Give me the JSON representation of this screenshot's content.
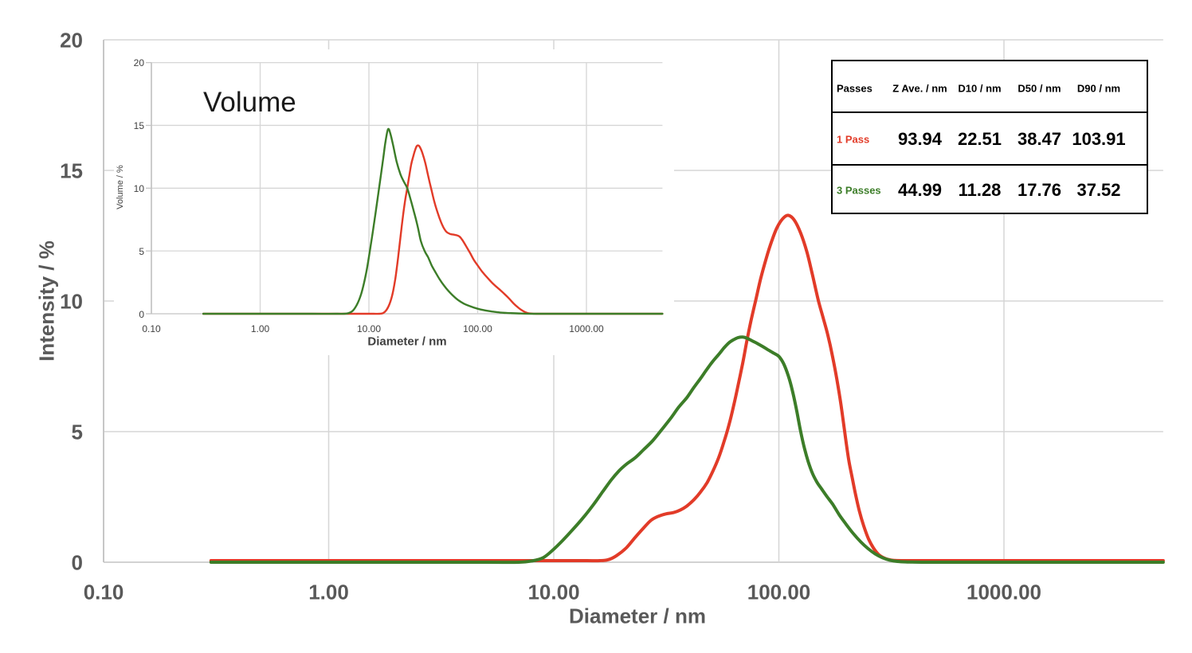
{
  "chart_data": [
    {
      "type": "line",
      "name": "intensity-size-distribution",
      "title": "",
      "xlabel": "Diameter / nm",
      "ylabel": "Intensity / %",
      "xscale": "log",
      "xlim": [
        0.1,
        5100
      ],
      "ylim": [
        0,
        20
      ],
      "yticks": [
        20,
        15,
        10,
        5,
        0
      ],
      "xtick_labels": [
        "0.10",
        "1.00",
        "10.00",
        "100.00",
        "1000.00"
      ],
      "xtick_values": [
        0.1,
        1,
        10,
        100,
        1000
      ],
      "grid": true,
      "legend": "none",
      "series": [
        {
          "name": "1 Pass",
          "color": "#e23b28",
          "points": [
            [
              0.3,
              0.06
            ],
            [
              0.6,
              0.06
            ],
            [
              1.2,
              0.06
            ],
            [
              2.5,
              0.06
            ],
            [
              5,
              0.06
            ],
            [
              8,
              0.06
            ],
            [
              11,
              0.06
            ],
            [
              14,
              0.06
            ],
            [
              16,
              0.06
            ],
            [
              17.5,
              0.1
            ],
            [
              19,
              0.25
            ],
            [
              21,
              0.55
            ],
            [
              23,
              0.95
            ],
            [
              25,
              1.3
            ],
            [
              27,
              1.6
            ],
            [
              29,
              1.75
            ],
            [
              31.5,
              1.85
            ],
            [
              34,
              1.9
            ],
            [
              36.5,
              2.0
            ],
            [
              39,
              2.15
            ],
            [
              42,
              2.4
            ],
            [
              45,
              2.7
            ],
            [
              48,
              3.05
            ],
            [
              51,
              3.5
            ],
            [
              54,
              4.0
            ],
            [
              57,
              4.6
            ],
            [
              60,
              5.25
            ],
            [
              63,
              6.0
            ],
            [
              66,
              6.8
            ],
            [
              69,
              7.6
            ],
            [
              72,
              8.45
            ],
            [
              75,
              9.2
            ],
            [
              79,
              10.05
            ],
            [
              83,
              10.85
            ],
            [
              88,
              11.65
            ],
            [
              93,
              12.3
            ],
            [
              98,
              12.8
            ],
            [
              104,
              13.15
            ],
            [
              110,
              13.28
            ],
            [
              117,
              13.1
            ],
            [
              125,
              12.6
            ],
            [
              133,
              11.9
            ],
            [
              141,
              11.0
            ],
            [
              150,
              10.0
            ],
            [
              158,
              9.3
            ],
            [
              165,
              8.7
            ],
            [
              173,
              7.9
            ],
            [
              181,
              7.0
            ],
            [
              189,
              6.0
            ],
            [
              196,
              5.0
            ],
            [
              204,
              3.95
            ],
            [
              211,
              3.3
            ],
            [
              219,
              2.6
            ],
            [
              228,
              1.95
            ],
            [
              238,
              1.4
            ],
            [
              250,
              0.9
            ],
            [
              263,
              0.55
            ],
            [
              277,
              0.3
            ],
            [
              292,
              0.17
            ],
            [
              308,
              0.1
            ],
            [
              325,
              0.07
            ],
            [
              360,
              0.06
            ],
            [
              500,
              0.06
            ],
            [
              800,
              0.06
            ],
            [
              1500,
              0.06
            ],
            [
              3000,
              0.06
            ],
            [
              5100,
              0.06
            ]
          ]
        },
        {
          "name": "3 Passes",
          "color": "#3c7d28",
          "points": [
            [
              0.3,
              0
            ],
            [
              0.6,
              0
            ],
            [
              1.2,
              0
            ],
            [
              2.5,
              0
            ],
            [
              5,
              0
            ],
            [
              7,
              0
            ],
            [
              8,
              0.05
            ],
            [
              9,
              0.18
            ],
            [
              10,
              0.5
            ],
            [
              11,
              0.85
            ],
            [
              12,
              1.2
            ],
            [
              13.5,
              1.7
            ],
            [
              15,
              2.2
            ],
            [
              16.5,
              2.7
            ],
            [
              18,
              3.15
            ],
            [
              19.5,
              3.5
            ],
            [
              21,
              3.75
            ],
            [
              23,
              4.0
            ],
            [
              25,
              4.3
            ],
            [
              27.5,
              4.65
            ],
            [
              30,
              5.05
            ],
            [
              33,
              5.5
            ],
            [
              36,
              5.95
            ],
            [
              39,
              6.3
            ],
            [
              42,
              6.7
            ],
            [
              45,
              7.05
            ],
            [
              48,
              7.4
            ],
            [
              51,
              7.7
            ],
            [
              54,
              7.95
            ],
            [
              57,
              8.2
            ],
            [
              60,
              8.4
            ],
            [
              63,
              8.52
            ],
            [
              66,
              8.6
            ],
            [
              69,
              8.62
            ],
            [
              72,
              8.58
            ],
            [
              76,
              8.48
            ],
            [
              80,
              8.38
            ],
            [
              85,
              8.25
            ],
            [
              90,
              8.12
            ],
            [
              95,
              8.0
            ],
            [
              100,
              7.88
            ],
            [
              105,
              7.6
            ],
            [
              110,
              7.15
            ],
            [
              115,
              6.55
            ],
            [
              120,
              5.8
            ],
            [
              125,
              5.0
            ],
            [
              130,
              4.35
            ],
            [
              135,
              3.85
            ],
            [
              141,
              3.4
            ],
            [
              148,
              3.05
            ],
            [
              155,
              2.8
            ],
            [
              164,
              2.5
            ],
            [
              174,
              2.2
            ],
            [
              186,
              1.8
            ],
            [
              199,
              1.45
            ],
            [
              214,
              1.1
            ],
            [
              231,
              0.78
            ],
            [
              249,
              0.52
            ],
            [
              268,
              0.32
            ],
            [
              289,
              0.17
            ],
            [
              311,
              0.08
            ],
            [
              336,
              0.03
            ],
            [
              372,
              0.01
            ],
            [
              430,
              0
            ],
            [
              700,
              0
            ],
            [
              1500,
              0
            ],
            [
              3000,
              0
            ],
            [
              5100,
              0
            ]
          ]
        }
      ]
    },
    {
      "type": "line",
      "name": "volume-size-distribution",
      "title": "Volume",
      "xlabel": "Diameter / nm",
      "ylabel": "Volume / %",
      "xscale": "log",
      "xlim": [
        0.1,
        5000
      ],
      "ylim": [
        0,
        20
      ],
      "yticks": [
        20,
        15,
        10,
        5,
        0
      ],
      "xtick_labels": [
        "0.10",
        "1.00",
        "10.00",
        "100.00",
        "1000.00"
      ],
      "xtick_values": [
        0.1,
        1,
        10,
        100,
        1000
      ],
      "grid": true,
      "legend": "none",
      "series": [
        {
          "name": "1 Pass",
          "color": "#e23b28",
          "points": [
            [
              0.3,
              0
            ],
            [
              0.7,
              0
            ],
            [
              1.5,
              0
            ],
            [
              3,
              0
            ],
            [
              6,
              0
            ],
            [
              9,
              0
            ],
            [
              11,
              0
            ],
            [
              12.5,
              0
            ],
            [
              13.5,
              0.05
            ],
            [
              14.5,
              0.3
            ],
            [
              15.5,
              0.8
            ],
            [
              16.5,
              1.6
            ],
            [
              17.5,
              2.8
            ],
            [
              18.5,
              4.4
            ],
            [
              19.5,
              6.1
            ],
            [
              20.5,
              7.7
            ],
            [
              21.5,
              9.0
            ],
            [
              22.5,
              10.0
            ],
            [
              23.5,
              11.0
            ],
            [
              24.5,
              11.9
            ],
            [
              25.5,
              12.5
            ],
            [
              26.5,
              13.0
            ],
            [
              27.5,
              13.35
            ],
            [
              28.5,
              13.4
            ],
            [
              29.5,
              13.25
            ],
            [
              31,
              12.8
            ],
            [
              33,
              12.0
            ],
            [
              35,
              11.0
            ],
            [
              37.5,
              9.9
            ],
            [
              40,
              8.9
            ],
            [
              43,
              8.0
            ],
            [
              46,
              7.3
            ],
            [
              49,
              6.8
            ],
            [
              52,
              6.5
            ],
            [
              56,
              6.35
            ],
            [
              60,
              6.3
            ],
            [
              64,
              6.25
            ],
            [
              68,
              6.15
            ],
            [
              72,
              5.9
            ],
            [
              78,
              5.4
            ],
            [
              85,
              4.85
            ],
            [
              92,
              4.3
            ],
            [
              100,
              3.85
            ],
            [
              110,
              3.35
            ],
            [
              125,
              2.8
            ],
            [
              140,
              2.35
            ],
            [
              158,
              1.95
            ],
            [
              175,
              1.6
            ],
            [
              195,
              1.2
            ],
            [
              215,
              0.8
            ],
            [
              235,
              0.5
            ],
            [
              255,
              0.28
            ],
            [
              275,
              0.12
            ],
            [
              295,
              0.04
            ],
            [
              320,
              0.01
            ],
            [
              350,
              0
            ],
            [
              600,
              0
            ],
            [
              1500,
              0
            ],
            [
              3000,
              0
            ],
            [
              5000,
              0
            ]
          ]
        },
        {
          "name": "3 Passes",
          "color": "#3c7d28",
          "points": [
            [
              0.3,
              0
            ],
            [
              0.7,
              0
            ],
            [
              1.5,
              0
            ],
            [
              3,
              0
            ],
            [
              5,
              0
            ],
            [
              6.5,
              0.05
            ],
            [
              7.5,
              0.5
            ],
            [
              8.5,
              1.6
            ],
            [
              9.5,
              3.4
            ],
            [
              10.5,
              5.7
            ],
            [
              11.5,
              8.0
            ],
            [
              12.5,
              10.2
            ],
            [
              13.5,
              12.3
            ],
            [
              14.2,
              13.7
            ],
            [
              15,
              14.7
            ],
            [
              15.8,
              14.3
            ],
            [
              16.8,
              13.3
            ],
            [
              18,
              12.1
            ],
            [
              19.5,
              11.1
            ],
            [
              21,
              10.5
            ],
            [
              22.5,
              10.0
            ],
            [
              24,
              9.2
            ],
            [
              26,
              8.1
            ],
            [
              28,
              7.0
            ],
            [
              30,
              5.8
            ],
            [
              32.5,
              5.0
            ],
            [
              35,
              4.5
            ],
            [
              38,
              3.8
            ],
            [
              41,
              3.3
            ],
            [
              45,
              2.7
            ],
            [
              49,
              2.25
            ],
            [
              54,
              1.8
            ],
            [
              60,
              1.4
            ],
            [
              67,
              1.05
            ],
            [
              75,
              0.8
            ],
            [
              85,
              0.6
            ],
            [
              100,
              0.4
            ],
            [
              115,
              0.28
            ],
            [
              135,
              0.18
            ],
            [
              160,
              0.1
            ],
            [
              200,
              0.05
            ],
            [
              250,
              0.02
            ],
            [
              320,
              0
            ],
            [
              600,
              0
            ],
            [
              1500,
              0
            ],
            [
              3000,
              0
            ],
            [
              5000,
              0
            ]
          ]
        }
      ]
    }
  ],
  "table": {
    "headers": [
      "Passes",
      "Z Ave. / nm",
      "D10 / nm",
      "D50 / nm",
      "D90 / nm"
    ],
    "rows": [
      {
        "label": "1 Pass",
        "color": "#e23b28",
        "values": [
          "93.94",
          "22.51",
          "38.47",
          "103.91"
        ]
      },
      {
        "label": "3 Passes",
        "color": "#3c7d28",
        "values": [
          "44.99",
          "11.28",
          "17.76",
          "37.52"
        ]
      }
    ]
  },
  "colors": {
    "red": "#e23b28",
    "green": "#3c7d28",
    "axis_label": "#595959",
    "inset_label": "#3f3f3f",
    "grid": "#d6d6d6",
    "spine": "#c4c4c4",
    "table_border": "#000000",
    "title_text": "#1a1a1a"
  }
}
